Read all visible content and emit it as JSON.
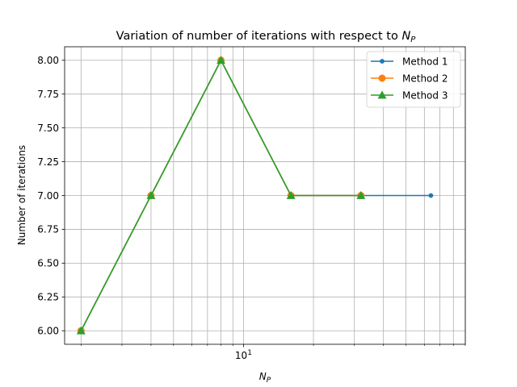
{
  "chart_data": {
    "type": "line",
    "title_prefix": "Variation of number of iterations with respect to ",
    "title_var": "N",
    "title_sub": "P",
    "xlabel_var": "N",
    "xlabel_sub": "P",
    "ylabel": "Number of iterations",
    "x_scale": "log",
    "xlim": [
      1.7,
      90
    ],
    "ylim": [
      5.9,
      8.1
    ],
    "x_major_ticks": [
      {
        "value": 10,
        "base": "10",
        "exp": "1"
      }
    ],
    "x_minor_ticks": [
      2,
      3,
      4,
      5,
      6,
      7,
      8,
      9,
      20,
      30,
      40,
      50,
      60,
      70,
      80,
      90
    ],
    "y_ticks": [
      6.0,
      6.25,
      6.5,
      6.75,
      7.0,
      7.25,
      7.5,
      7.75,
      8.0
    ],
    "y_tick_labels": [
      "6.00",
      "6.25",
      "6.50",
      "6.75",
      "7.00",
      "7.25",
      "7.50",
      "7.75",
      "8.00"
    ],
    "grid": true,
    "legend_position": "top-right",
    "series": [
      {
        "name": "Method 1",
        "color": "#1f77b4",
        "marker": "point",
        "x": [
          2,
          4,
          8,
          16,
          32,
          64
        ],
        "values": [
          6,
          7,
          8,
          7,
          7,
          7
        ]
      },
      {
        "name": "Method 2",
        "color": "#ff7f0e",
        "marker": "circle",
        "x": [
          2,
          4,
          8,
          16,
          32
        ],
        "values": [
          6,
          7,
          8,
          7,
          7
        ]
      },
      {
        "name": "Method 3",
        "color": "#2ca02c",
        "marker": "triangle",
        "x": [
          2,
          4,
          8,
          16,
          32
        ],
        "values": [
          6,
          7,
          8,
          7,
          7
        ]
      }
    ]
  }
}
